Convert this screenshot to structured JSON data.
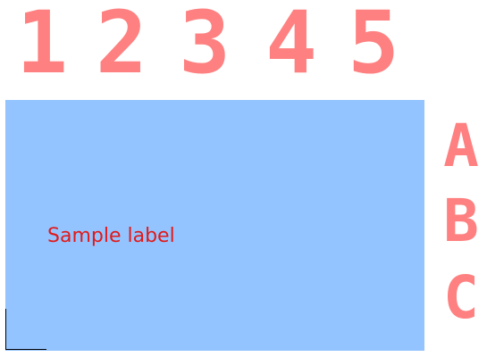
{
  "digits": [
    "1",
    "2",
    "3",
    "4",
    "5"
  ],
  "letters": [
    "A",
    "B",
    "C"
  ],
  "panel": {
    "label": "Sample label"
  },
  "colors": {
    "glyph": "#ff8080",
    "panel_bg": "#94c4ff",
    "label": "#e01a1a"
  }
}
